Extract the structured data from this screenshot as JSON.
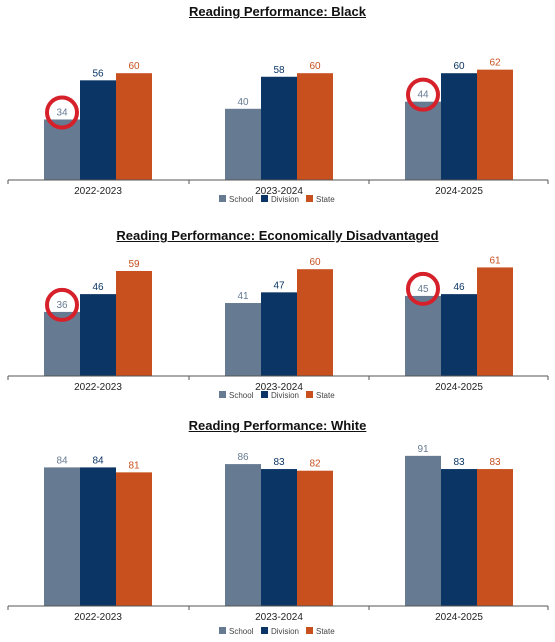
{
  "colors": {
    "school": "#667a91",
    "division": "#0b3564",
    "state": "#c8501e",
    "highlight": "#d6202a",
    "axis": "#555555"
  },
  "chart_data": [
    {
      "type": "bar",
      "title": "Reading Performance: Black",
      "categories": [
        "2022-2023",
        "2023-2024",
        "2024-2025"
      ],
      "series": [
        {
          "name": "School",
          "values": [
            34,
            40,
            44
          ]
        },
        {
          "name": "Division",
          "values": [
            56,
            58,
            60
          ]
        },
        {
          "name": "State",
          "values": [
            60,
            60,
            62
          ]
        }
      ],
      "ylim": [
        0,
        100
      ],
      "legend": "bottom-center",
      "grid": false,
      "highlighted": [
        {
          "series": "School",
          "category": "2022-2023"
        },
        {
          "series": "School",
          "category": "2024-2025"
        }
      ]
    },
    {
      "type": "bar",
      "title": "Reading Performance: Economically Disadvantaged",
      "categories": [
        "2022-2023",
        "2023-2024",
        "2024-2025"
      ],
      "series": [
        {
          "name": "School",
          "values": [
            36,
            41,
            45
          ]
        },
        {
          "name": "Division",
          "values": [
            46,
            47,
            46
          ]
        },
        {
          "name": "State",
          "values": [
            59,
            60,
            61
          ]
        }
      ],
      "ylim": [
        0,
        100
      ],
      "legend": "bottom-center",
      "grid": false,
      "highlighted": [
        {
          "series": "School",
          "category": "2022-2023"
        },
        {
          "series": "School",
          "category": "2024-2025"
        }
      ]
    },
    {
      "type": "bar",
      "title": "Reading Performance: White",
      "categories": [
        "2022-2023",
        "2023-2024",
        "2024-2025"
      ],
      "series": [
        {
          "name": "School",
          "values": [
            84,
            86,
            91
          ]
        },
        {
          "name": "Division",
          "values": [
            84,
            83,
            83
          ]
        },
        {
          "name": "State",
          "values": [
            81,
            82,
            83
          ]
        }
      ],
      "ylim": [
        0,
        100
      ],
      "legend": "bottom-center",
      "grid": false,
      "highlighted": []
    }
  ]
}
